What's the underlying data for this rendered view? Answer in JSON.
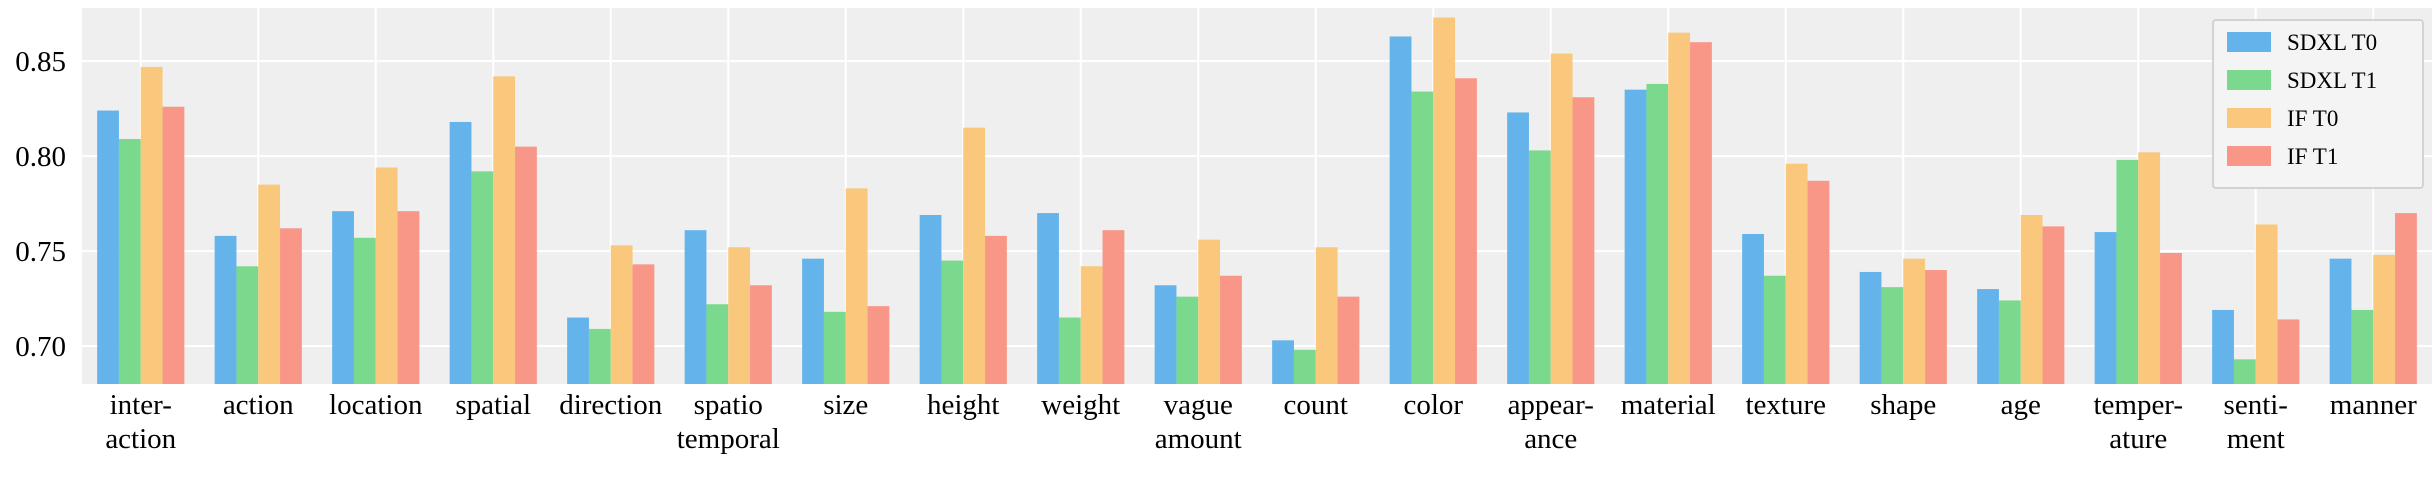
{
  "chart_data": {
    "type": "bar",
    "categories": [
      [
        "inter-",
        "action"
      ],
      [
        "action"
      ],
      [
        "location"
      ],
      [
        "spatial"
      ],
      [
        "direction"
      ],
      [
        "spatio",
        "temporal"
      ],
      [
        "size"
      ],
      [
        "height"
      ],
      [
        "weight"
      ],
      [
        "vague",
        "amount"
      ],
      [
        "count"
      ],
      [
        "color"
      ],
      [
        "appear-",
        "ance"
      ],
      [
        "material"
      ],
      [
        "texture"
      ],
      [
        "shape"
      ],
      [
        "age"
      ],
      [
        "temper-",
        "ature"
      ],
      [
        "senti-",
        "ment"
      ],
      [
        "manner"
      ]
    ],
    "series": [
      {
        "name": "SDXL T0",
        "color": "#64b3eb",
        "values": [
          0.824,
          0.758,
          0.771,
          0.818,
          0.715,
          0.761,
          0.746,
          0.769,
          0.77,
          0.732,
          0.703,
          0.863,
          0.823,
          0.835,
          0.759,
          0.739,
          0.73,
          0.76,
          0.719,
          0.746
        ]
      },
      {
        "name": "SDXL T1",
        "color": "#7bd98d",
        "values": [
          0.809,
          0.742,
          0.757,
          0.792,
          0.709,
          0.722,
          0.718,
          0.745,
          0.715,
          0.726,
          0.698,
          0.834,
          0.803,
          0.838,
          0.737,
          0.731,
          0.724,
          0.798,
          0.693,
          0.719
        ]
      },
      {
        "name": "IF T0",
        "color": "#f9c87c",
        "values": [
          0.847,
          0.785,
          0.794,
          0.842,
          0.753,
          0.752,
          0.783,
          0.815,
          0.742,
          0.756,
          0.752,
          0.873,
          0.854,
          0.865,
          0.796,
          0.746,
          0.769,
          0.802,
          0.764,
          0.748
        ]
      },
      {
        "name": "IF T1",
        "color": "#f89687",
        "values": [
          0.826,
          0.762,
          0.771,
          0.805,
          0.743,
          0.732,
          0.721,
          0.758,
          0.761,
          0.737,
          0.726,
          0.841,
          0.831,
          0.86,
          0.787,
          0.74,
          0.763,
          0.749,
          0.714,
          0.77
        ]
      }
    ],
    "yticks": [
      "0.70",
      "0.75",
      "0.80",
      "0.85"
    ],
    "ylim": [
      0.68,
      0.878
    ],
    "grid": true,
    "legend_position": "top-right",
    "background": "#efefef"
  }
}
